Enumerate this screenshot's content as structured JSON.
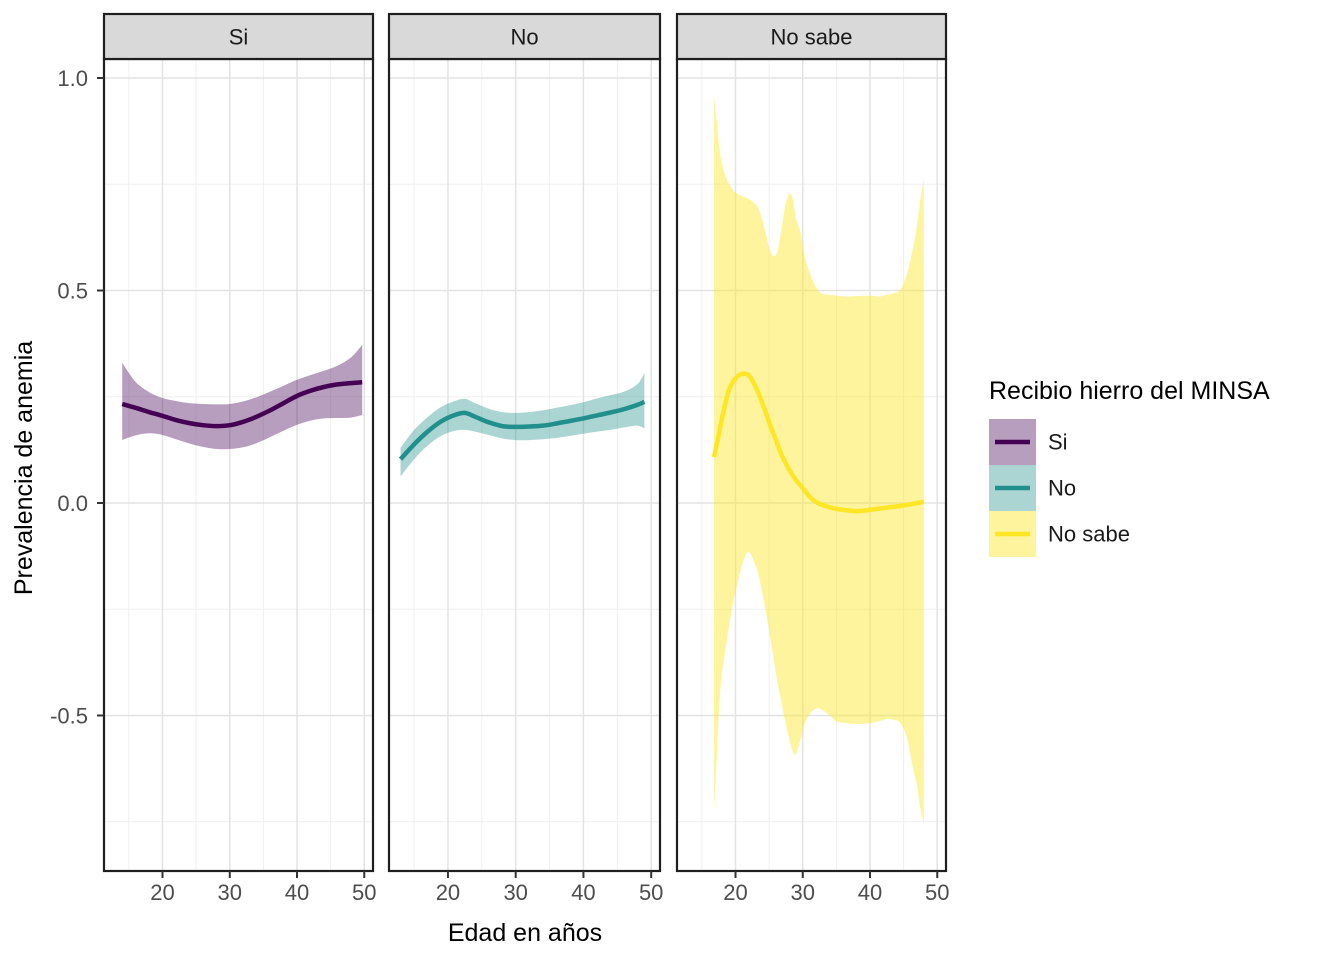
{
  "figure": {
    "background": "#ffffff",
    "colors": {
      "strip_fill": "#d9d9d9",
      "panel_border": "#1f1f1f",
      "grid_major": "#e3e3e3",
      "grid_minor": "#efefef",
      "tick_mark": "#333333",
      "tick_label": "#4d4d4d",
      "axis_title": "#000000",
      "strip_text": "#1a1a1a",
      "legend_text": "#1a1a1a"
    }
  },
  "chart_data": {
    "type": "area",
    "subtype": "smoothed-line-with-confidence-ribbon",
    "faceted": true,
    "title": "",
    "xlabel": "Edad en años",
    "ylabel": "Prevalencia de anemia",
    "xlim": [
      11.3,
      51.3
    ],
    "ylim": [
      -0.87,
      1.05
    ],
    "x_major_ticks": [
      20,
      30,
      40,
      50
    ],
    "x_minor_ticks": [
      15,
      25,
      35,
      45
    ],
    "y_major_ticks": [
      1.0,
      0.5,
      0.0,
      -0.5
    ],
    "y_minor_ticks": [
      0.75,
      0.25,
      -0.25,
      -0.75
    ],
    "y_tick_labels": [
      "1.0",
      "0.5",
      "0.0",
      "-0.5"
    ],
    "x_tick_labels": [
      "20",
      "30",
      "40",
      "50"
    ],
    "grid": true,
    "legend_position": "right",
    "legend_title": "Recibio hierro del MINSA",
    "legend_items": [
      {
        "label": "Si",
        "line_color": "#440154",
        "fill_color": "rgba(68,1,84,0.38)"
      },
      {
        "label": "No",
        "line_color": "#21908C",
        "fill_color": "rgba(33,144,140,0.38)"
      },
      {
        "label": "No sabe",
        "line_color": "#FDE725",
        "fill_color": "rgba(253,231,37,0.45)"
      }
    ],
    "facets": [
      {
        "label": "Si",
        "line_color": "#440154",
        "ribbon_color": "rgba(68,1,84,0.38)",
        "line": [
          [
            14,
            0.233
          ],
          [
            16,
            0.224
          ],
          [
            18,
            0.214
          ],
          [
            20,
            0.205
          ],
          [
            22,
            0.195
          ],
          [
            24,
            0.188
          ],
          [
            26,
            0.183
          ],
          [
            28,
            0.181
          ],
          [
            30,
            0.183
          ],
          [
            32,
            0.191
          ],
          [
            34,
            0.203
          ],
          [
            36,
            0.218
          ],
          [
            38,
            0.235
          ],
          [
            40,
            0.252
          ],
          [
            42,
            0.264
          ],
          [
            44,
            0.273
          ],
          [
            46,
            0.279
          ],
          [
            48,
            0.282
          ],
          [
            49.7,
            0.284
          ]
        ],
        "ribbon": [
          [
            14,
            0.148,
            0.33
          ],
          [
            16,
            0.159,
            0.285
          ],
          [
            18,
            0.164,
            0.261
          ],
          [
            20,
            0.16,
            0.247
          ],
          [
            22,
            0.15,
            0.24
          ],
          [
            24,
            0.14,
            0.235
          ],
          [
            26,
            0.132,
            0.233
          ],
          [
            28,
            0.127,
            0.232
          ],
          [
            30,
            0.127,
            0.233
          ],
          [
            32,
            0.131,
            0.239
          ],
          [
            34,
            0.141,
            0.249
          ],
          [
            36,
            0.155,
            0.262
          ],
          [
            38,
            0.17,
            0.276
          ],
          [
            40,
            0.184,
            0.29
          ],
          [
            42,
            0.194,
            0.301
          ],
          [
            44,
            0.199,
            0.311
          ],
          [
            46,
            0.2,
            0.323
          ],
          [
            48,
            0.201,
            0.342
          ],
          [
            49.7,
            0.207,
            0.372
          ]
        ]
      },
      {
        "label": "No",
        "line_color": "#21908C",
        "ribbon_color": "rgba(33,144,140,0.38)",
        "line": [
          [
            13,
            0.103
          ],
          [
            15,
            0.138
          ],
          [
            17,
            0.168
          ],
          [
            19,
            0.192
          ],
          [
            21,
            0.207
          ],
          [
            22.5,
            0.212
          ],
          [
            24,
            0.203
          ],
          [
            26,
            0.19
          ],
          [
            28,
            0.181
          ],
          [
            30,
            0.179
          ],
          [
            32,
            0.18
          ],
          [
            34,
            0.182
          ],
          [
            36,
            0.187
          ],
          [
            38,
            0.193
          ],
          [
            40,
            0.199
          ],
          [
            42,
            0.206
          ],
          [
            44,
            0.213
          ],
          [
            46,
            0.221
          ],
          [
            48,
            0.231
          ],
          [
            49,
            0.238
          ]
        ],
        "ribbon": [
          [
            13,
            0.062,
            0.13
          ],
          [
            15,
            0.103,
            0.172
          ],
          [
            17,
            0.135,
            0.202
          ],
          [
            19,
            0.158,
            0.226
          ],
          [
            21,
            0.17,
            0.24
          ],
          [
            22.5,
            0.172,
            0.245
          ],
          [
            24,
            0.168,
            0.235
          ],
          [
            26,
            0.16,
            0.222
          ],
          [
            28,
            0.152,
            0.214
          ],
          [
            30,
            0.148,
            0.212
          ],
          [
            32,
            0.148,
            0.214
          ],
          [
            34,
            0.15,
            0.218
          ],
          [
            36,
            0.153,
            0.224
          ],
          [
            38,
            0.158,
            0.23
          ],
          [
            40,
            0.163,
            0.237
          ],
          [
            42,
            0.168,
            0.246
          ],
          [
            44,
            0.172,
            0.254
          ],
          [
            46,
            0.178,
            0.262
          ],
          [
            48,
            0.182,
            0.28
          ],
          [
            49,
            0.175,
            0.306
          ]
        ]
      },
      {
        "label": "No sabe",
        "line_color": "#FDE725",
        "ribbon_color": "rgba(253,231,37,0.45)",
        "line": [
          [
            16.8,
            0.108
          ],
          [
            17.5,
            0.16
          ],
          [
            18,
            0.2
          ],
          [
            19,
            0.265
          ],
          [
            20,
            0.293
          ],
          [
            21,
            0.304
          ],
          [
            22,
            0.3
          ],
          [
            23,
            0.273
          ],
          [
            24,
            0.235
          ],
          [
            25,
            0.19
          ],
          [
            26,
            0.148
          ],
          [
            27,
            0.108
          ],
          [
            28,
            0.078
          ],
          [
            29,
            0.054
          ],
          [
            30,
            0.035
          ],
          [
            31,
            0.015
          ],
          [
            32,
            0.002
          ],
          [
            33,
            -0.005
          ],
          [
            34,
            -0.01
          ],
          [
            35,
            -0.014
          ],
          [
            36,
            -0.016
          ],
          [
            38,
            -0.019
          ],
          [
            40,
            -0.016
          ],
          [
            42,
            -0.012
          ],
          [
            44,
            -0.008
          ],
          [
            46,
            -0.003
          ],
          [
            48,
            0.003
          ]
        ],
        "ribbon": [
          [
            16.8,
            -0.727,
            0.955
          ],
          [
            17.2,
            -0.6,
            0.9
          ],
          [
            17.6,
            -0.47,
            0.835
          ],
          [
            18,
            -0.4,
            0.8
          ],
          [
            18.6,
            -0.335,
            0.765
          ],
          [
            19.4,
            -0.255,
            0.742
          ],
          [
            20,
            -0.21,
            0.73
          ],
          [
            21,
            -0.145,
            0.722
          ],
          [
            21.9,
            -0.115,
            0.716
          ],
          [
            22.8,
            -0.14,
            0.705
          ],
          [
            23.5,
            -0.175,
            0.69
          ],
          [
            24.5,
            -0.255,
            0.635
          ],
          [
            25,
            -0.3,
            0.6
          ],
          [
            25.6,
            -0.36,
            0.582
          ],
          [
            26.2,
            -0.42,
            0.59
          ],
          [
            26.8,
            -0.465,
            0.64
          ],
          [
            27.4,
            -0.515,
            0.7
          ],
          [
            28,
            -0.555,
            0.728
          ],
          [
            28.5,
            -0.585,
            0.716
          ],
          [
            29,
            -0.59,
            0.67
          ],
          [
            29.7,
            -0.555,
            0.635
          ],
          [
            30.4,
            -0.515,
            0.575
          ],
          [
            31.4,
            -0.49,
            0.527
          ],
          [
            32.3,
            -0.483,
            0.5
          ],
          [
            33,
            -0.488,
            0.492
          ],
          [
            34,
            -0.5,
            0.49
          ],
          [
            35,
            -0.514,
            0.488
          ],
          [
            36.6,
            -0.518,
            0.486
          ],
          [
            38,
            -0.52,
            0.487
          ],
          [
            40,
            -0.518,
            0.488
          ],
          [
            41.5,
            -0.513,
            0.486
          ],
          [
            42.5,
            -0.508,
            0.49
          ],
          [
            43.5,
            -0.51,
            0.494
          ],
          [
            44.5,
            -0.518,
            0.502
          ],
          [
            45.5,
            -0.553,
            0.54
          ],
          [
            46.4,
            -0.625,
            0.6
          ],
          [
            47,
            -0.665,
            0.655
          ],
          [
            47.4,
            -0.712,
            0.705
          ],
          [
            48,
            -0.755,
            0.765
          ]
        ]
      }
    ]
  }
}
